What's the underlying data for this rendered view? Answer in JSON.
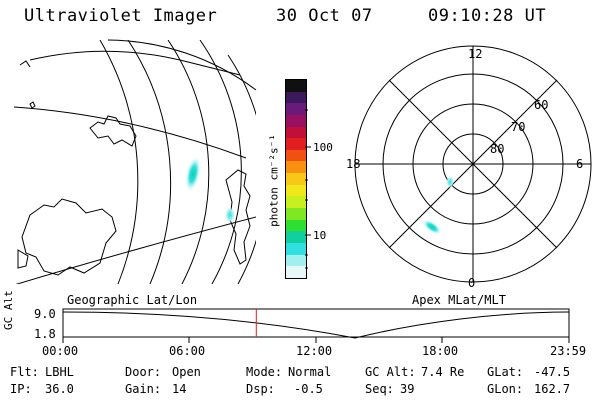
{
  "header": {
    "title": "Ultraviolet Imager",
    "date": "30 Oct 07",
    "time": "09:10:28 UT"
  },
  "colorbar": {
    "unit_label": "photon cm⁻²s⁻¹",
    "ticks": [
      "100",
      "10"
    ],
    "colors": [
      "#101010",
      "#3a1a5a",
      "#6a1a7a",
      "#9a1060",
      "#c0103a",
      "#e02020",
      "#f05010",
      "#f89010",
      "#f8c818",
      "#f0e818",
      "#c8f020",
      "#80e820",
      "#30e030",
      "#10d0a0",
      "#30e0e0",
      "#a0f0f0",
      "#e8f8f8"
    ]
  },
  "polar": {
    "mlt_labels": {
      "top": "12",
      "bottom": "0",
      "left": "18",
      "right": "6"
    },
    "lat_labels": [
      "60",
      "70",
      "80"
    ]
  },
  "timeline": {
    "left_label": "Geographic Lat/Lon",
    "right_label": "Apex MLat/MLT",
    "ylabel": "GC Alt",
    "ymax": "9.0",
    "ymin": "1.8",
    "times": [
      "00:00",
      "06:00",
      "12:00",
      "18:00",
      "23:59"
    ],
    "current_fraction": 0.382
  },
  "info": {
    "flt_label": "Flt:",
    "flt_value": "LBHL",
    "ip_label": "IP:",
    "ip_value": "36.0",
    "door_label": "Door:",
    "door_value": "Open",
    "gain_label": "Gain:",
    "gain_value": "14",
    "mode_label": "Mode:",
    "mode_value": "Normal",
    "dsp_label": "Dsp:",
    "dsp_value": "-0.5",
    "gcalt_label": "GC Alt:",
    "gcalt_value": "7.4 Re",
    "seq_label": "Seq:",
    "seq_value": "39",
    "glat_label": "GLat:",
    "glat_value": "-47.5",
    "glon_label": "GLon:",
    "glon_value": "162.7"
  }
}
